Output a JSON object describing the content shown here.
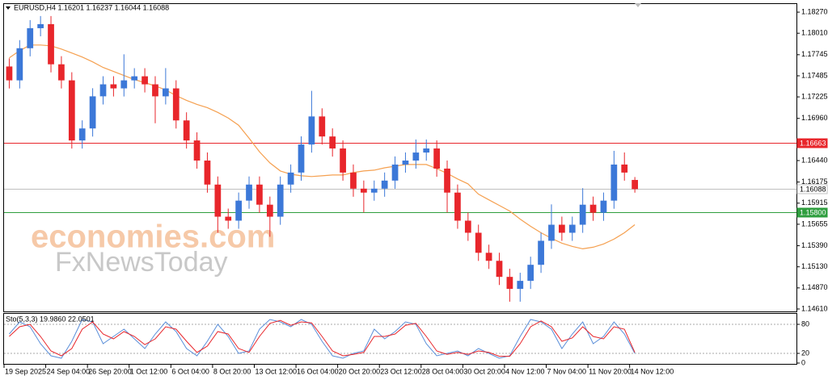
{
  "chart_data": [
    {
      "type": "candlestick",
      "title": "EURUSD,H4  1.16201 1.16237 1.16044 1.16088",
      "watermark": [
        "economies.com",
        "FxNewsToday"
      ],
      "up_color": "#3c78d8",
      "down_color": "#e8262b",
      "open": [
        1.176,
        1.17429,
        1.17825,
        1.18072,
        1.18122,
        1.17627,
        1.17429,
        1.16688,
        1.16836,
        1.17232,
        1.1738,
        1.1733,
        1.17429,
        1.17479,
        1.1738,
        1.17232,
        1.1733,
        1.16935,
        1.16688,
        1.1644,
        1.16144,
        1.15748,
        1.15699,
        1.15946,
        1.16144,
        1.15896,
        1.15748,
        1.16144,
        1.16292,
        1.16638,
        1.16984,
        1.16737,
        1.16589,
        1.16292,
        1.16094,
        1.16045,
        1.16094,
        1.16193,
        1.16391,
        1.1644,
        1.16539,
        1.16589,
        1.16341,
        1.16045,
        1.15699,
        1.1555,
        1.15303,
        1.15204,
        1.15006,
        1.14858,
        1.14957,
        1.15155,
        1.15451,
        1.15649,
        1.1555,
        1.15649,
        1.15896,
        1.15797,
        1.15946,
        1.16391,
        1.16201
      ],
      "high": [
        1.177,
        1.17925,
        1.18172,
        1.18222,
        1.18222,
        1.17727,
        1.17529,
        1.16936,
        1.17332,
        1.1748,
        1.1748,
        1.1775,
        1.17579,
        1.17579,
        1.1748,
        1.1758,
        1.1743,
        1.17035,
        1.16788,
        1.1654,
        1.16244,
        1.15848,
        1.16046,
        1.16244,
        1.16244,
        1.15996,
        1.16244,
        1.16392,
        1.16738,
        1.173,
        1.17084,
        1.16837,
        1.16689,
        1.16392,
        1.16194,
        1.16194,
        1.16293,
        1.16491,
        1.1654,
        1.167,
        1.167,
        1.16689,
        1.16441,
        1.16145,
        1.15799,
        1.1565,
        1.15403,
        1.15304,
        1.15106,
        1.15057,
        1.15255,
        1.15551,
        1.159,
        1.15749,
        1.15749,
        1.161,
        1.15996,
        1.16046,
        1.1656,
        1.1654,
        1.16237
      ],
      "low": [
        1.17329,
        1.17329,
        1.17725,
        1.17972,
        1.17527,
        1.17329,
        1.16588,
        1.16588,
        1.16736,
        1.17132,
        1.1723,
        1.1723,
        1.17329,
        1.1728,
        1.169,
        1.17132,
        1.16835,
        1.16588,
        1.1634,
        1.16044,
        1.1555,
        1.15599,
        1.15599,
        1.15846,
        1.15796,
        1.155,
        1.15648,
        1.16044,
        1.16192,
        1.16538,
        1.16637,
        1.16489,
        1.16192,
        1.15994,
        1.158,
        1.15945,
        1.15994,
        1.16093,
        1.16291,
        1.1634,
        1.16439,
        1.16241,
        1.158,
        1.15599,
        1.1545,
        1.15203,
        1.15104,
        1.14906,
        1.147,
        1.147,
        1.14857,
        1.15055,
        1.15351,
        1.1545,
        1.1545,
        1.15549,
        1.15697,
        1.15697,
        1.15846,
        1.16192,
        1.16044
      ],
      "close": [
        1.17429,
        1.17825,
        1.18072,
        1.18122,
        1.17627,
        1.17429,
        1.16688,
        1.16836,
        1.17232,
        1.1738,
        1.1733,
        1.17429,
        1.17479,
        1.1738,
        1.17232,
        1.1733,
        1.16935,
        1.16688,
        1.1644,
        1.16144,
        1.15748,
        1.15699,
        1.15946,
        1.16144,
        1.15896,
        1.15748,
        1.16144,
        1.16292,
        1.16638,
        1.16984,
        1.16737,
        1.16589,
        1.16292,
        1.16094,
        1.16045,
        1.16094,
        1.16193,
        1.16391,
        1.1644,
        1.16539,
        1.16589,
        1.16341,
        1.16045,
        1.15699,
        1.1555,
        1.15303,
        1.15204,
        1.15006,
        1.14858,
        1.14957,
        1.15155,
        1.15451,
        1.15649,
        1.1555,
        1.15649,
        1.15896,
        1.15797,
        1.15946,
        1.16391,
        1.16292,
        1.16088
      ],
      "series": [
        {
          "color": "#f5a050",
          "values": [
            1.17706,
            1.17795,
            1.17865,
            1.17865,
            1.17855,
            1.17815,
            1.17766,
            1.17716,
            1.17657,
            1.17588,
            1.17538,
            1.17489,
            1.17439,
            1.174,
            1.1736,
            1.17311,
            1.17241,
            1.17182,
            1.17133,
            1.17093,
            1.17034,
            1.16965,
            1.16876,
            1.16717,
            1.16549,
            1.16411,
            1.16312,
            1.16272,
            1.16252,
            1.16243,
            1.16252,
            1.16262,
            1.16262,
            1.16292,
            1.16312,
            1.16322,
            1.16351,
            1.16371,
            1.16391,
            1.16391,
            1.16391,
            1.16341,
            1.16282,
            1.16213,
            1.16153,
            1.16025,
            1.15956,
            1.15887,
            1.15817,
            1.15718,
            1.15629,
            1.1555,
            1.15481,
            1.15422,
            1.15382,
            1.15352,
            1.15372,
            1.15412,
            1.15471,
            1.1555,
            1.15649
          ]
        }
      ],
      "hlines": [
        {
          "value": 1.16663,
          "label": "1.16663",
          "color": "#e8262b"
        },
        {
          "value": 1.158,
          "label": "1.15800",
          "color": "#2e9e3e"
        },
        {
          "value": 1.16088,
          "label": "1.16088",
          "color": "#c0c0c0"
        }
      ],
      "ylim": [
        1.1458,
        1.1837
      ],
      "yticks": [
        {
          "value": 1.1827,
          "label": "1.18270"
        },
        {
          "value": 1.1801,
          "label": "1.18010"
        },
        1.17745,
        1.17485,
        1.17225,
        {
          "value": 1.1696,
          "label": "1.16960"
        },
        {
          "value": 1.1644,
          "label": "1.16440"
        },
        1.16175,
        1.15915,
        1.15655,
        {
          "value": 1.1539,
          "label": "1.15390"
        },
        {
          "value": 1.1513,
          "label": "1.15130"
        },
        {
          "value": 1.1487,
          "label": "1.14870"
        },
        {
          "value": 1.1461,
          "label": "1.14610"
        }
      ],
      "xlim": [
        -0.5,
        75.5
      ],
      "xticks": [
        {
          "value": -0.5,
          "label": "19 Sep 2025"
        },
        {
          "value": 3.5,
          "label": "24 Sep 04:00"
        },
        {
          "value": 7.5,
          "label": "26 Sep 20:00"
        },
        {
          "value": 11.5,
          "label": "1 Oct 12:00"
        },
        {
          "value": 15.5,
          "label": "6 Oct 04:00"
        },
        {
          "value": 19.5,
          "label": "8 Oct 20:00"
        },
        {
          "value": 23.5,
          "label": "13 Oct 12:00"
        },
        {
          "value": 27.5,
          "label": "16 Oct 04:00"
        },
        {
          "value": 31.5,
          "label": "20 Oct 20:00"
        },
        {
          "value": 35.5,
          "label": "23 Oct 12:00"
        },
        {
          "value": 39.5,
          "label": "28 Oct 04:00"
        },
        {
          "value": 43.5,
          "label": "30 Oct 20:00"
        },
        {
          "value": 47.5,
          "label": "4 Nov 12:00"
        },
        {
          "value": 51.5,
          "label": "7 Nov 04:00"
        },
        {
          "value": 55.5,
          "label": "11 Nov 20:00"
        },
        {
          "value": 59.5,
          "label": "14 Nov 12:00"
        }
      ]
    },
    {
      "type": "line",
      "title": "Sto(5,3,3) 19.9860 22.0501",
      "series": [
        {
          "color": "#5b8fd9",
          "values": [
            60,
            85,
            75,
            40,
            15,
            10,
            45,
            90,
            85,
            40,
            55,
            70,
            50,
            30,
            60,
            85,
            65,
            30,
            15,
            45,
            80,
            55,
            20,
            25,
            70,
            90,
            85,
            75,
            90,
            80,
            45,
            15,
            10,
            20,
            25,
            70,
            50,
            65,
            85,
            80,
            40,
            15,
            20,
            25,
            15,
            30,
            20,
            10,
            15,
            55,
            90,
            85,
            70,
            30,
            60,
            85,
            40,
            55,
            85,
            60,
            19.986
          ]
        },
        {
          "color": "#e8262b",
          "values": [
            55,
            75,
            80,
            55,
            25,
            15,
            30,
            70,
            85,
            60,
            50,
            65,
            55,
            38,
            50,
            75,
            70,
            45,
            22,
            35,
            65,
            60,
            30,
            22,
            55,
            82,
            88,
            78,
            85,
            83,
            55,
            25,
            15,
            18,
            22,
            55,
            55,
            60,
            78,
            82,
            55,
            25,
            18,
            22,
            18,
            25,
            22,
            14,
            14,
            40,
            75,
            87,
            75,
            45,
            52,
            75,
            55,
            50,
            75,
            70,
            22.0501
          ]
        }
      ],
      "ylim": [
        0,
        100
      ],
      "yticks": [
        0,
        20,
        80
      ],
      "xlim": [
        -0.5,
        75.5
      ],
      "grid": "dashed"
    }
  ]
}
